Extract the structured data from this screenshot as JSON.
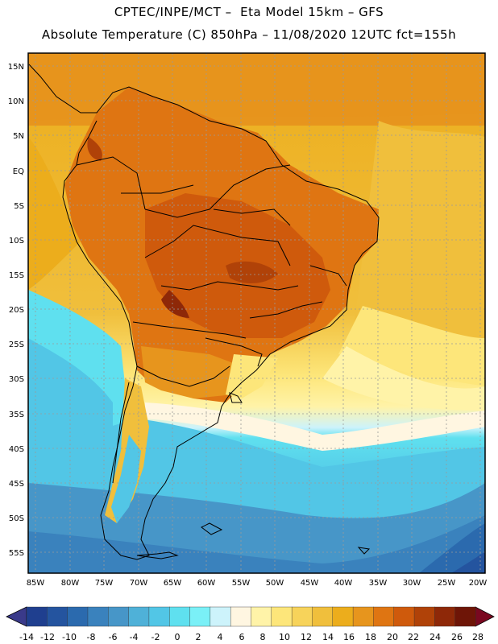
{
  "header": {
    "line1": "CPTEC/INPE/MCT –  Eta Model 15km – GFS",
    "line2": "Absolute Temperature (C) 850hPa – 11/08/2020 12UTC fct=155h"
  },
  "map": {
    "lat_labels": [
      "15N",
      "10N",
      "5N",
      "EQ",
      "5S",
      "10S",
      "15S",
      "20S",
      "25S",
      "30S",
      "35S",
      "40S",
      "45S",
      "50S",
      "55S"
    ],
    "lon_labels": [
      "85W",
      "80W",
      "75W",
      "70W",
      "65W",
      "60W",
      "55W",
      "50W",
      "45W",
      "40W",
      "35W",
      "30W",
      "25W",
      "20W"
    ]
  },
  "colorbar": {
    "labels": [
      "-14",
      "-12",
      "-10",
      "-8",
      "-6",
      "-4",
      "-2",
      "0",
      "2",
      "4",
      "6",
      "8",
      "10",
      "12",
      "14",
      "16",
      "18",
      "20",
      "22",
      "24",
      "26",
      "28"
    ],
    "colors": [
      "#1f3f8f",
      "#24549f",
      "#2b6aae",
      "#3a82bd",
      "#4796c8",
      "#4fb1d8",
      "#52c6e6",
      "#5fe0ef",
      "#7af0f7",
      "#cdf3fb",
      "#fff6e1",
      "#fff3a8",
      "#fde67a",
      "#f7d35a",
      "#f0bf3c",
      "#ecad1c",
      "#e7951d",
      "#df7512",
      "#cf5a0c",
      "#b04208",
      "#8e2808",
      "#6e1507"
    ],
    "min_color": "#3a3a8a",
    "max_color": "#7a0820"
  }
}
